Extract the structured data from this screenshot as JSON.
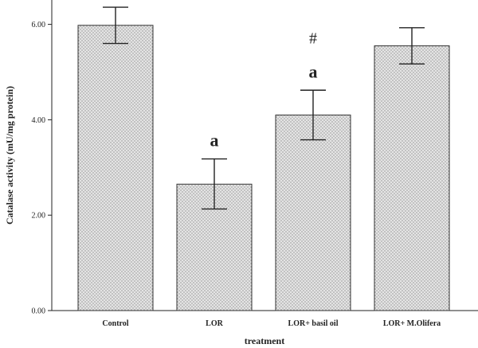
{
  "chart_data": {
    "type": "bar",
    "xlabel": "treatment",
    "ylabel": "Catalase activity (mU/mg protein)",
    "ylim": [
      0,
      6.5
    ],
    "yticks": [
      "0.00",
      "2.00",
      "4.00",
      "6.00"
    ],
    "ytick_values": [
      0,
      2,
      4,
      6
    ],
    "categories": [
      "Control",
      "LOR",
      "LOR+ basil oil",
      "LOR+ M.Olifera"
    ],
    "values": [
      5.98,
      2.65,
      4.1,
      5.55
    ],
    "error_low": [
      5.6,
      2.13,
      3.58,
      5.17
    ],
    "error_high": [
      6.36,
      3.18,
      4.62,
      5.93
    ],
    "annotations": [
      {
        "category_index": 1,
        "lines": [
          "a"
        ]
      },
      {
        "category_index": 2,
        "lines": [
          "#",
          "a"
        ]
      }
    ],
    "bar_fill": "#e4e4e4",
    "dot_color": "#8f8f8f",
    "grid": false,
    "legend": "none"
  }
}
